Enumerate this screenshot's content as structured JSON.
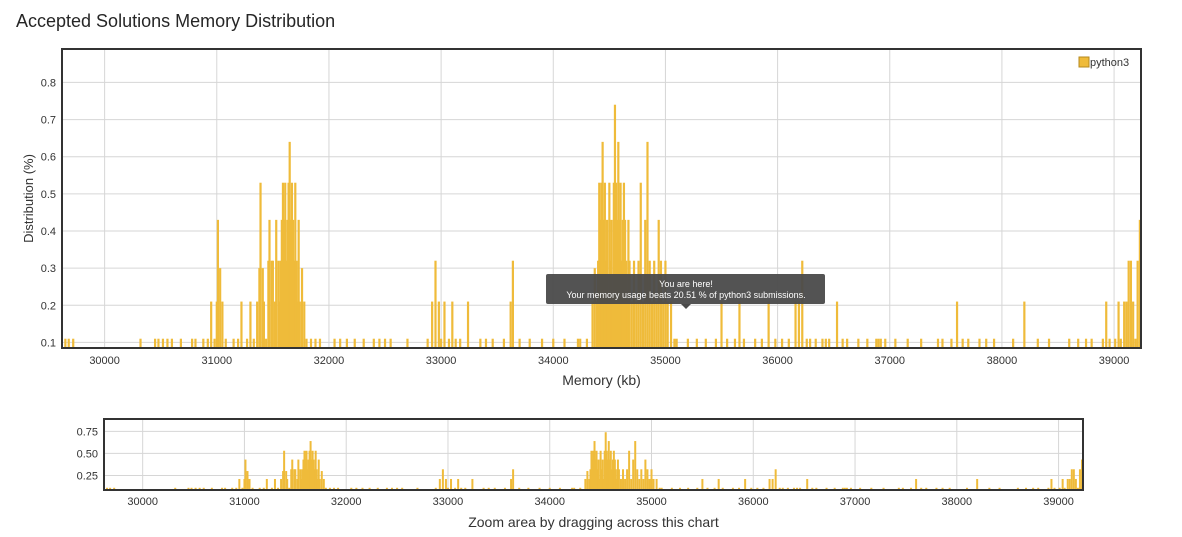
{
  "page": {
    "title": "Accepted Solutions Memory Distribution"
  },
  "tooltip": {
    "line1": "You are here!",
    "line2": "Your memory usage beats 20.51 % of python3 submissions."
  },
  "colors": {
    "bar": "#efbb3a",
    "frame": "#333333",
    "grid": "#d6d6d6",
    "tooltip_bg": "#4a4a4a"
  },
  "chart_data": [
    {
      "type": "bar",
      "name": "main",
      "title": "",
      "xlabel": "Memory (kb)",
      "ylabel": "Distribution (%)",
      "legend": "python3",
      "legend_position": "top-right",
      "grid": true,
      "xlim": [
        29620,
        39240
      ],
      "ylim": [
        0.085,
        0.89
      ],
      "x_ticks": [
        30000,
        31000,
        32000,
        33000,
        34000,
        35000,
        36000,
        37000,
        38000,
        39000
      ],
      "y_ticks": [
        0.1,
        0.2,
        0.3,
        0.4,
        0.5,
        0.6,
        0.7,
        0.8
      ],
      "y_tick_labels": [
        "0.1",
        "0.2",
        "0.3",
        "0.4",
        "0.5",
        "0.6",
        "0.7",
        "0.8"
      ],
      "series": [
        {
          "name": "python3",
          "points": [
            [
              29650,
              0.11
            ],
            [
              29680,
              0.11
            ],
            [
              29720,
              0.11
            ],
            [
              30320,
              0.11
            ],
            [
              30450,
              0.11
            ],
            [
              30480,
              0.11
            ],
            [
              30520,
              0.11
            ],
            [
              30560,
              0.11
            ],
            [
              30600,
              0.11
            ],
            [
              30680,
              0.11
            ],
            [
              30780,
              0.11
            ],
            [
              30810,
              0.11
            ],
            [
              30880,
              0.11
            ],
            [
              30920,
              0.11
            ],
            [
              30950,
              0.21
            ],
            [
              30980,
              0.11
            ],
            [
              31000,
              0.21
            ],
            [
              31010,
              0.43
            ],
            [
              31030,
              0.3
            ],
            [
              31050,
              0.21
            ],
            [
              31080,
              0.11
            ],
            [
              31150,
              0.11
            ],
            [
              31190,
              0.11
            ],
            [
              31220,
              0.21
            ],
            [
              31270,
              0.11
            ],
            [
              31300,
              0.21
            ],
            [
              31330,
              0.11
            ],
            [
              31360,
              0.21
            ],
            [
              31380,
              0.3
            ],
            [
              31390,
              0.53
            ],
            [
              31410,
              0.3
            ],
            [
              31420,
              0.21
            ],
            [
              31440,
              0.11
            ],
            [
              31460,
              0.32
            ],
            [
              31470,
              0.43
            ],
            [
              31490,
              0.32
            ],
            [
              31500,
              0.32
            ],
            [
              31520,
              0.21
            ],
            [
              31530,
              0.43
            ],
            [
              31550,
              0.32
            ],
            [
              31560,
              0.21
            ],
            [
              31570,
              0.32
            ],
            [
              31580,
              0.43
            ],
            [
              31590,
              0.53
            ],
            [
              31600,
              0.43
            ],
            [
              31610,
              0.53
            ],
            [
              31620,
              0.32
            ],
            [
              31630,
              0.43
            ],
            [
              31640,
              0.53
            ],
            [
              31650,
              0.64
            ],
            [
              31660,
              0.43
            ],
            [
              31670,
              0.53
            ],
            [
              31680,
              0.43
            ],
            [
              31690,
              0.32
            ],
            [
              31700,
              0.53
            ],
            [
              31710,
              0.32
            ],
            [
              31720,
              0.21
            ],
            [
              31730,
              0.43
            ],
            [
              31740,
              0.21
            ],
            [
              31760,
              0.3
            ],
            [
              31780,
              0.21
            ],
            [
              31800,
              0.11
            ],
            [
              31840,
              0.11
            ],
            [
              31880,
              0.11
            ],
            [
              31920,
              0.11
            ],
            [
              32050,
              0.11
            ],
            [
              32100,
              0.11
            ],
            [
              32160,
              0.11
            ],
            [
              32230,
              0.11
            ],
            [
              32310,
              0.11
            ],
            [
              32400,
              0.11
            ],
            [
              32450,
              0.11
            ],
            [
              32500,
              0.11
            ],
            [
              32550,
              0.11
            ],
            [
              32700,
              0.11
            ],
            [
              32880,
              0.11
            ],
            [
              32920,
              0.21
            ],
            [
              32950,
              0.32
            ],
            [
              32980,
              0.21
            ],
            [
              33000,
              0.11
            ],
            [
              33030,
              0.21
            ],
            [
              33070,
              0.11
            ],
            [
              33100,
              0.21
            ],
            [
              33130,
              0.11
            ],
            [
              33170,
              0.11
            ],
            [
              33240,
              0.21
            ],
            [
              33350,
              0.11
            ],
            [
              33400,
              0.11
            ],
            [
              33460,
              0.11
            ],
            [
              33560,
              0.11
            ],
            [
              33620,
              0.21
            ],
            [
              33640,
              0.32
            ],
            [
              33700,
              0.11
            ],
            [
              33790,
              0.11
            ],
            [
              33900,
              0.11
            ],
            [
              34000,
              0.11
            ],
            [
              34100,
              0.11
            ],
            [
              34220,
              0.11
            ],
            [
              34240,
              0.11
            ],
            [
              34300,
              0.11
            ],
            [
              34350,
              0.21
            ],
            [
              34370,
              0.3
            ],
            [
              34390,
              0.21
            ],
            [
              34400,
              0.32
            ],
            [
              34410,
              0.53
            ],
            [
              34420,
              0.43
            ],
            [
              34430,
              0.53
            ],
            [
              34440,
              0.64
            ],
            [
              34450,
              0.43
            ],
            [
              34460,
              0.53
            ],
            [
              34470,
              0.32
            ],
            [
              34480,
              0.43
            ],
            [
              34490,
              0.21
            ],
            [
              34500,
              0.53
            ],
            [
              34510,
              0.32
            ],
            [
              34520,
              0.43
            ],
            [
              34530,
              0.21
            ],
            [
              34540,
              0.53
            ],
            [
              34550,
              0.74
            ],
            [
              34560,
              0.53
            ],
            [
              34570,
              0.43
            ],
            [
              34580,
              0.64
            ],
            [
              34590,
              0.43
            ],
            [
              34600,
              0.53
            ],
            [
              34610,
              0.32
            ],
            [
              34620,
              0.43
            ],
            [
              34630,
              0.53
            ],
            [
              34640,
              0.43
            ],
            [
              34650,
              0.32
            ],
            [
              34660,
              0.21
            ],
            [
              34670,
              0.43
            ],
            [
              34680,
              0.32
            ],
            [
              34700,
              0.21
            ],
            [
              34720,
              0.32
            ],
            [
              34740,
              0.21
            ],
            [
              34760,
              0.32
            ],
            [
              34780,
              0.53
            ],
            [
              34800,
              0.21
            ],
            [
              34820,
              0.43
            ],
            [
              34840,
              0.64
            ],
            [
              34860,
              0.32
            ],
            [
              34880,
              0.21
            ],
            [
              34900,
              0.32
            ],
            [
              34920,
              0.21
            ],
            [
              34940,
              0.43
            ],
            [
              34960,
              0.32
            ],
            [
              34980,
              0.21
            ],
            [
              35000,
              0.32
            ],
            [
              35020,
              0.21
            ],
            [
              35050,
              0.21
            ],
            [
              35080,
              0.11
            ],
            [
              35100,
              0.11
            ],
            [
              35200,
              0.11
            ],
            [
              35280,
              0.11
            ],
            [
              35360,
              0.11
            ],
            [
              35450,
              0.11
            ],
            [
              35500,
              0.21
            ],
            [
              35550,
              0.11
            ],
            [
              35620,
              0.11
            ],
            [
              35660,
              0.21
            ],
            [
              35700,
              0.11
            ],
            [
              35800,
              0.11
            ],
            [
              35860,
              0.11
            ],
            [
              35920,
              0.21
            ],
            [
              35980,
              0.11
            ],
            [
              36040,
              0.11
            ],
            [
              36100,
              0.11
            ],
            [
              36160,
              0.21
            ],
            [
              36190,
              0.21
            ],
            [
              36220,
              0.32
            ],
            [
              36260,
              0.11
            ],
            [
              36290,
              0.11
            ],
            [
              36340,
              0.11
            ],
            [
              36400,
              0.11
            ],
            [
              36430,
              0.11
            ],
            [
              36460,
              0.11
            ],
            [
              36530,
              0.21
            ],
            [
              36580,
              0.11
            ],
            [
              36620,
              0.11
            ],
            [
              36720,
              0.11
            ],
            [
              36800,
              0.11
            ],
            [
              36880,
              0.11
            ],
            [
              36900,
              0.11
            ],
            [
              36920,
              0.11
            ],
            [
              36960,
              0.11
            ],
            [
              37050,
              0.11
            ],
            [
              37160,
              0.11
            ],
            [
              37280,
              0.11
            ],
            [
              37430,
              0.11
            ],
            [
              37470,
              0.11
            ],
            [
              37550,
              0.11
            ],
            [
              37600,
              0.21
            ],
            [
              37650,
              0.11
            ],
            [
              37700,
              0.11
            ],
            [
              37800,
              0.11
            ],
            [
              37860,
              0.11
            ],
            [
              37930,
              0.11
            ],
            [
              38100,
              0.11
            ],
            [
              38200,
              0.21
            ],
            [
              38320,
              0.11
            ],
            [
              38420,
              0.11
            ],
            [
              38600,
              0.11
            ],
            [
              38680,
              0.11
            ],
            [
              38750,
              0.11
            ],
            [
              38800,
              0.11
            ],
            [
              38900,
              0.11
            ],
            [
              38930,
              0.21
            ],
            [
              38960,
              0.11
            ],
            [
              39010,
              0.11
            ],
            [
              39040,
              0.21
            ],
            [
              39060,
              0.11
            ],
            [
              39090,
              0.21
            ],
            [
              39110,
              0.21
            ],
            [
              39130,
              0.32
            ],
            [
              39150,
              0.32
            ],
            [
              39170,
              0.21
            ],
            [
              39190,
              0.11
            ],
            [
              39210,
              0.32
            ],
            [
              39230,
              0.43
            ]
          ]
        }
      ]
    },
    {
      "type": "bar",
      "name": "navigator",
      "title": "",
      "xlabel": "Zoom area by dragging across this chart",
      "ylabel": "",
      "legend_position": "none",
      "grid": true,
      "xlim": [
        29620,
        39240
      ],
      "ylim": [
        0.085,
        0.89
      ],
      "x_ticks": [
        30000,
        31000,
        32000,
        33000,
        34000,
        35000,
        36000,
        37000,
        38000,
        39000
      ],
      "y_ticks": [
        0.25,
        0.5,
        0.75
      ],
      "y_tick_labels": [
        "0.25",
        "0.50",
        "0.75"
      ],
      "series_ref": "python3"
    }
  ]
}
